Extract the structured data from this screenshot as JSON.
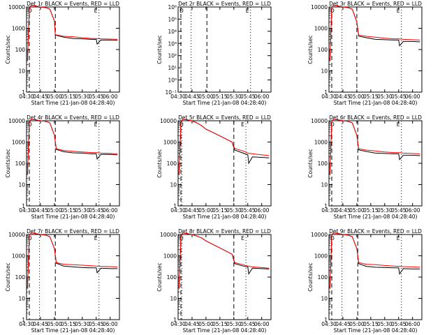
{
  "chart_data": {
    "type": "line",
    "time_ticks": [
      "04:30",
      "04:45",
      "05:00",
      "05:15",
      "05:30",
      "05:45",
      "06:00"
    ],
    "x_start": "04:30",
    "x_end": "06:10",
    "ylabel": "Counts/sec",
    "xlabel": "Start Time (21-Jan-08 04:28:40)",
    "dashed_lines": [
      "04:33",
      "05:30"
    ],
    "dotted_lines": [
      "04:34",
      "04:50",
      "05:43"
    ],
    "series_colors": {
      "events": "#000000",
      "lld": "#ff0000"
    },
    "panels": [
      {
        "title": "Det 1r BLACK = Events, RED = LLD",
        "yscale": "log",
        "ylim": [
          1,
          10000
        ],
        "y_ticks": [
          "1",
          "10",
          "100",
          "1000",
          "10000"
        ],
        "dashed_lines": [
          "04:33",
          "05:01"
        ],
        "dotted_lines": [
          "04:44",
          "05:48"
        ],
        "markers": [
          "D",
          "E"
        ],
        "lld": {
          "x": [
            "04:31",
            "04:33",
            "04:35",
            "04:40",
            "04:45",
            "04:50",
            "04:55",
            "05:00",
            "05:01",
            "05:10",
            "05:20",
            "05:30",
            "05:40",
            "05:45",
            "05:50",
            "06:00",
            "06:08"
          ],
          "y": [
            30,
            8000,
            12000,
            11000,
            10000,
            9500,
            8000,
            2200,
            500,
            420,
            400,
            360,
            330,
            330,
            320,
            310,
            300
          ]
        },
        "events": {
          "x": [
            "04:31",
            "04:33",
            "04:35",
            "04:40",
            "04:45",
            "04:50",
            "04:55",
            "05:00",
            "05:01",
            "05:10",
            "05:20",
            "05:30",
            "05:40",
            "05:45",
            "05:46",
            "05:50",
            "06:00",
            "06:08"
          ],
          "y": [
            30,
            8000,
            12000,
            11000,
            10000,
            9500,
            8000,
            2200,
            480,
            380,
            330,
            320,
            300,
            300,
            180,
            280,
            280,
            270
          ]
        }
      },
      {
        "title": "Det 2r BLACK = Events, RED = LLD",
        "yscale": "log",
        "ylim": [
          1,
          1000000
        ],
        "y_ticks": [
          "10⁻¹",
          "10⁰",
          "10¹",
          "10²",
          "10³",
          "10⁴",
          "10⁵",
          "10⁶"
        ],
        "dashed_lines": [
          "04:33",
          "05:01"
        ],
        "dotted_lines": [
          "04:44",
          "05:48"
        ],
        "markers": [
          "D",
          "E"
        ],
        "lld": {
          "x": [],
          "y": []
        },
        "events": {
          "x": [],
          "y": []
        }
      },
      {
        "title": "Det 3r BLACK = Events, RED = LLD",
        "yscale": "log",
        "ylim": [
          1,
          10000
        ],
        "y_ticks": [
          "1",
          "10",
          "100",
          "1000",
          "10000"
        ],
        "dashed_lines": [
          "04:33",
          "05:00"
        ],
        "dotted_lines": [
          "04:44",
          "05:48"
        ],
        "markers": [
          "D",
          "E"
        ],
        "lld": {
          "x": [
            "04:31",
            "04:33",
            "04:35",
            "04:40",
            "04:45",
            "04:50",
            "04:55",
            "05:00",
            "05:02",
            "05:10",
            "05:20",
            "05:30",
            "05:40",
            "05:45",
            "05:50",
            "06:00",
            "06:08"
          ],
          "y": [
            30,
            9000,
            12000,
            11000,
            10000,
            9500,
            8000,
            2000,
            480,
            420,
            380,
            340,
            320,
            320,
            300,
            290,
            280
          ]
        },
        "events": {
          "x": [
            "04:31",
            "04:33",
            "04:35",
            "04:40",
            "04:45",
            "04:50",
            "04:55",
            "05:00",
            "05:02",
            "05:10",
            "05:20",
            "05:30",
            "05:40",
            "05:45",
            "05:46",
            "05:50",
            "06:00",
            "06:08"
          ],
          "y": [
            30,
            9000,
            12000,
            11000,
            10000,
            9500,
            8000,
            2000,
            430,
            360,
            300,
            290,
            280,
            280,
            150,
            240,
            240,
            230
          ]
        }
      },
      {
        "title": "Det 4r BLACK = Events, RED = LLD",
        "yscale": "log",
        "ylim": [
          1,
          10000
        ],
        "y_ticks": [
          "1",
          "10",
          "100",
          "1000",
          "10000"
        ],
        "dashed_lines": [
          "04:33",
          "05:01"
        ],
        "dotted_lines": [
          "04:44",
          "05:48"
        ],
        "markers": [
          "D",
          "E"
        ],
        "lld": {
          "x": [
            "04:31",
            "04:33",
            "04:35",
            "04:40",
            "04:45",
            "04:50",
            "04:55",
            "05:00",
            "05:02",
            "05:10",
            "05:20",
            "05:30",
            "05:40",
            "05:45",
            "05:50",
            "06:00",
            "06:08"
          ],
          "y": [
            30,
            8000,
            12000,
            11000,
            10000,
            9500,
            8000,
            2100,
            480,
            400,
            370,
            340,
            320,
            320,
            300,
            290,
            280
          ]
        },
        "events": {
          "x": [
            "04:31",
            "04:33",
            "04:35",
            "04:40",
            "04:45",
            "04:50",
            "04:55",
            "05:00",
            "05:02",
            "05:10",
            "05:20",
            "05:30",
            "05:40",
            "05:45",
            "05:46",
            "05:50",
            "06:00",
            "06:08"
          ],
          "y": [
            30,
            8000,
            12000,
            11000,
            10000,
            9500,
            8000,
            2100,
            450,
            350,
            310,
            300,
            280,
            280,
            160,
            260,
            260,
            250
          ]
        }
      },
      {
        "title": "Det 5r BLACK = Events, RED = LLD",
        "yscale": "log",
        "ylim": [
          1,
          10000
        ],
        "y_ticks": [
          "1",
          "10",
          "100",
          "1000",
          "10000"
        ],
        "dashed_lines": [
          "04:33",
          "05:30"
        ],
        "dotted_lines": [
          "04:34",
          "05:43"
        ],
        "markers": [
          "D",
          "E"
        ],
        "lld": {
          "x": [
            "04:31",
            "04:33",
            "04:35",
            "04:40",
            "04:45",
            "04:50",
            "04:55",
            "05:00",
            "05:10",
            "05:20",
            "05:28",
            "05:31",
            "05:40",
            "05:45",
            "05:50",
            "06:00",
            "06:08"
          ],
          "y": [
            30,
            8000,
            12000,
            11000,
            10000,
            8000,
            6000,
            4000,
            2500,
            1500,
            1000,
            500,
            380,
            300,
            280,
            250,
            230
          ]
        },
        "events": {
          "x": [
            "04:31",
            "04:33",
            "04:35",
            "04:40",
            "04:45",
            "04:50",
            "04:55",
            "05:00",
            "05:10",
            "05:20",
            "05:28",
            "05:31",
            "05:40",
            "05:45",
            "05:46",
            "05:50",
            "06:00",
            "06:08"
          ],
          "y": [
            30,
            8000,
            12000,
            11000,
            10000,
            8000,
            6000,
            4000,
            2500,
            1500,
            1000,
            420,
            300,
            250,
            100,
            200,
            190,
            180
          ]
        }
      },
      {
        "title": "Det 6r BLACK = Events, RED = LLD",
        "yscale": "log",
        "ylim": [
          1,
          10000
        ],
        "y_ticks": [
          "1",
          "10",
          "100",
          "1000",
          "10000"
        ],
        "dashed_lines": [
          "04:33",
          "05:01"
        ],
        "dotted_lines": [
          "04:44",
          "05:48"
        ],
        "markers": [
          "D",
          "E"
        ],
        "lld": {
          "x": [
            "04:31",
            "04:33",
            "04:35",
            "04:40",
            "04:45",
            "04:50",
            "04:55",
            "05:00",
            "05:02",
            "05:10",
            "05:20",
            "05:30",
            "05:40",
            "05:45",
            "05:50",
            "06:00",
            "06:08"
          ],
          "y": [
            30,
            9000,
            12000,
            11000,
            10000,
            9500,
            8000,
            2100,
            480,
            420,
            380,
            340,
            320,
            320,
            300,
            290,
            280
          ]
        },
        "events": {
          "x": [
            "04:31",
            "04:33",
            "04:35",
            "04:40",
            "04:45",
            "04:50",
            "04:55",
            "05:00",
            "05:02",
            "05:10",
            "05:20",
            "05:30",
            "05:40",
            "05:45",
            "05:46",
            "05:50",
            "06:00",
            "06:08"
          ],
          "y": [
            30,
            9000,
            12000,
            11000,
            10000,
            9500,
            8000,
            2100,
            430,
            360,
            300,
            290,
            280,
            280,
            150,
            240,
            240,
            230
          ]
        }
      },
      {
        "title": "Det 7r BLACK = Events, RED = LLD",
        "yscale": "log",
        "ylim": [
          1,
          10000
        ],
        "y_ticks": [
          "1",
          "10",
          "100",
          "1000",
          "10000"
        ],
        "dashed_lines": [
          "04:33",
          "05:01"
        ],
        "dotted_lines": [
          "04:44",
          "05:48"
        ],
        "markers": [
          "D",
          "E"
        ],
        "lld": {
          "x": [
            "04:31",
            "04:33",
            "04:35",
            "04:40",
            "04:45",
            "04:50",
            "04:55",
            "05:00",
            "05:02",
            "05:10",
            "05:20",
            "05:30",
            "05:40",
            "05:45",
            "05:50",
            "06:00",
            "06:08"
          ],
          "y": [
            30,
            9000,
            12000,
            11000,
            10000,
            9500,
            8000,
            2200,
            480,
            400,
            380,
            360,
            340,
            330,
            320,
            310,
            300
          ]
        },
        "events": {
          "x": [
            "04:31",
            "04:33",
            "04:35",
            "04:40",
            "04:45",
            "04:50",
            "04:55",
            "05:00",
            "05:02",
            "05:10",
            "05:20",
            "05:30",
            "05:40",
            "05:45",
            "05:46",
            "05:50",
            "06:00",
            "06:08"
          ],
          "y": [
            30,
            9000,
            12000,
            11000,
            10000,
            9500,
            8000,
            2200,
            450,
            330,
            300,
            280,
            270,
            270,
            160,
            260,
            250,
            250
          ]
        }
      },
      {
        "title": "Det 8r BLACK = Events, RED = LLD",
        "yscale": "log",
        "ylim": [
          1,
          10000
        ],
        "y_ticks": [
          "1",
          "10",
          "100",
          "1000",
          "10000"
        ],
        "dashed_lines": [
          "04:33",
          "05:30"
        ],
        "dotted_lines": [
          "04:34",
          "05:43"
        ],
        "markers": [
          "D",
          "E"
        ],
        "lld": {
          "x": [
            "04:31",
            "04:33",
            "04:35",
            "04:40",
            "04:45",
            "04:50",
            "04:55",
            "05:00",
            "05:10",
            "05:20",
            "05:28",
            "05:31",
            "05:40",
            "05:45",
            "05:50",
            "06:00",
            "06:08"
          ],
          "y": [
            30,
            8000,
            12000,
            11000,
            10000,
            8500,
            7000,
            5000,
            3000,
            1800,
            1200,
            480,
            380,
            330,
            300,
            280,
            260
          ]
        },
        "events": {
          "x": [
            "04:31",
            "04:33",
            "04:35",
            "04:40",
            "04:45",
            "04:50",
            "04:55",
            "05:00",
            "05:10",
            "05:20",
            "05:28",
            "05:31",
            "05:40",
            "05:45",
            "05:46",
            "05:50",
            "06:00",
            "06:08"
          ],
          "y": [
            30,
            8000,
            12000,
            11000,
            10000,
            8500,
            7000,
            5000,
            3000,
            1800,
            1200,
            430,
            330,
            300,
            140,
            260,
            250,
            240
          ]
        }
      },
      {
        "title": "Det 9r BLACK = Events, RED = LLD",
        "yscale": "log",
        "ylim": [
          1,
          10000
        ],
        "y_ticks": [
          "1",
          "10",
          "100",
          "1000",
          "10000"
        ],
        "dashed_lines": [
          "04:33",
          "05:01"
        ],
        "dotted_lines": [
          "04:44",
          "05:48"
        ],
        "markers": [
          "D",
          "E"
        ],
        "lld": {
          "x": [
            "04:31",
            "04:33",
            "04:35",
            "04:40",
            "04:45",
            "04:50",
            "04:55",
            "05:00",
            "05:02",
            "05:10",
            "05:20",
            "05:30",
            "05:40",
            "05:45",
            "05:50",
            "06:00",
            "06:08"
          ],
          "y": [
            30,
            9000,
            12000,
            11000,
            10000,
            9500,
            8000,
            2200,
            480,
            400,
            380,
            350,
            330,
            320,
            310,
            300,
            290
          ]
        },
        "events": {
          "x": [
            "04:31",
            "04:33",
            "04:35",
            "04:40",
            "04:45",
            "04:50",
            "04:55",
            "05:00",
            "05:02",
            "05:10",
            "05:20",
            "05:30",
            "05:40",
            "05:45",
            "05:46",
            "05:50",
            "06:00",
            "06:08"
          ],
          "y": [
            30,
            9000,
            12000,
            11000,
            10000,
            9500,
            8000,
            2200,
            430,
            320,
            290,
            280,
            270,
            270,
            140,
            250,
            240,
            240
          ]
        }
      }
    ]
  }
}
